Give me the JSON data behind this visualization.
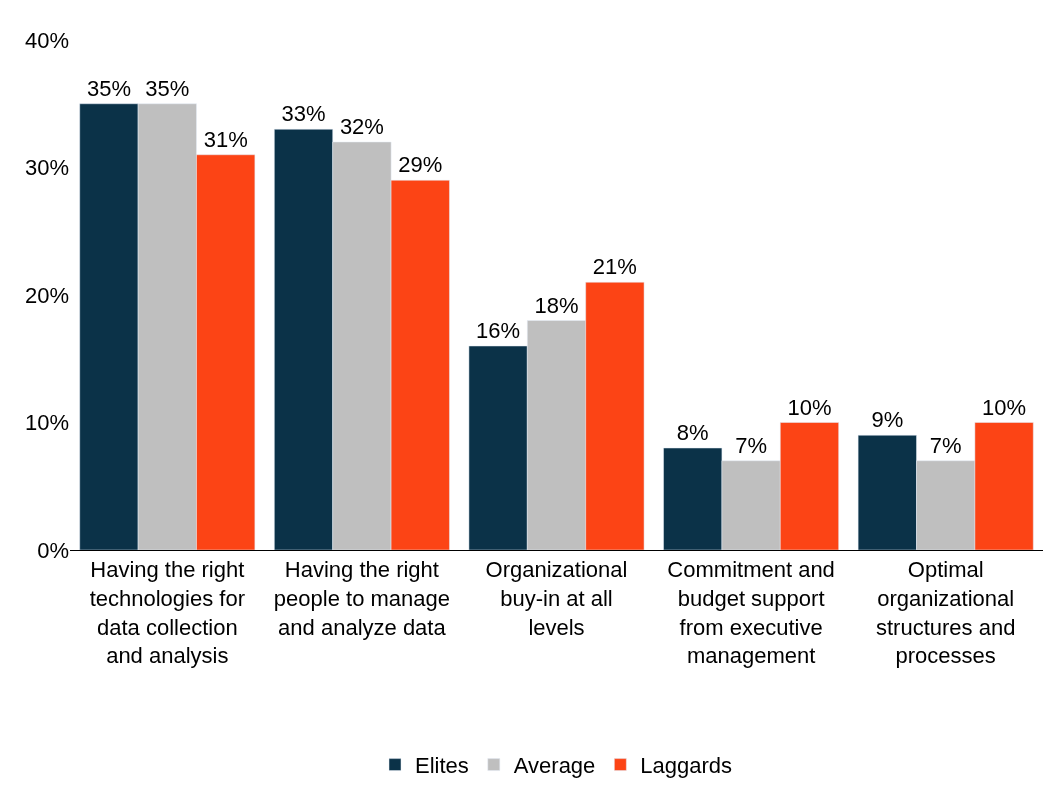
{
  "chart_data": {
    "type": "bar",
    "categories": [
      "Having the right technologies for data collection and analysis",
      "Having the right people to manage and analyze data",
      "Organizational buy-in at all levels",
      "Commitment and budget support from executive management",
      "Optimal organizational structures and processes"
    ],
    "series": [
      {
        "name": "Elites",
        "color": "#0b3248",
        "values": [
          35,
          33,
          16,
          8,
          9
        ],
        "value_labels": [
          "35%",
          "33%",
          "16%",
          "8%",
          "9%"
        ]
      },
      {
        "name": "Average",
        "color": "#bfbfbf",
        "values": [
          35,
          32,
          18,
          7,
          7
        ],
        "value_labels": [
          "35%",
          "32%",
          "18%",
          "7%",
          "7%"
        ]
      },
      {
        "name": "Laggards",
        "color": "#fc4415",
        "values": [
          31,
          29,
          21,
          10,
          10
        ],
        "value_labels": [
          "31%",
          "29%",
          "21%",
          "10%",
          "10%"
        ]
      }
    ],
    "ylim": [
      0,
      40
    ],
    "yticks": [
      {
        "value": 0,
        "label": "0%"
      },
      {
        "value": 10,
        "label": "10%"
      },
      {
        "value": 20,
        "label": "20%"
      },
      {
        "value": 30,
        "label": "30%"
      },
      {
        "value": 40,
        "label": "40%"
      }
    ],
    "legend": "bottom"
  }
}
